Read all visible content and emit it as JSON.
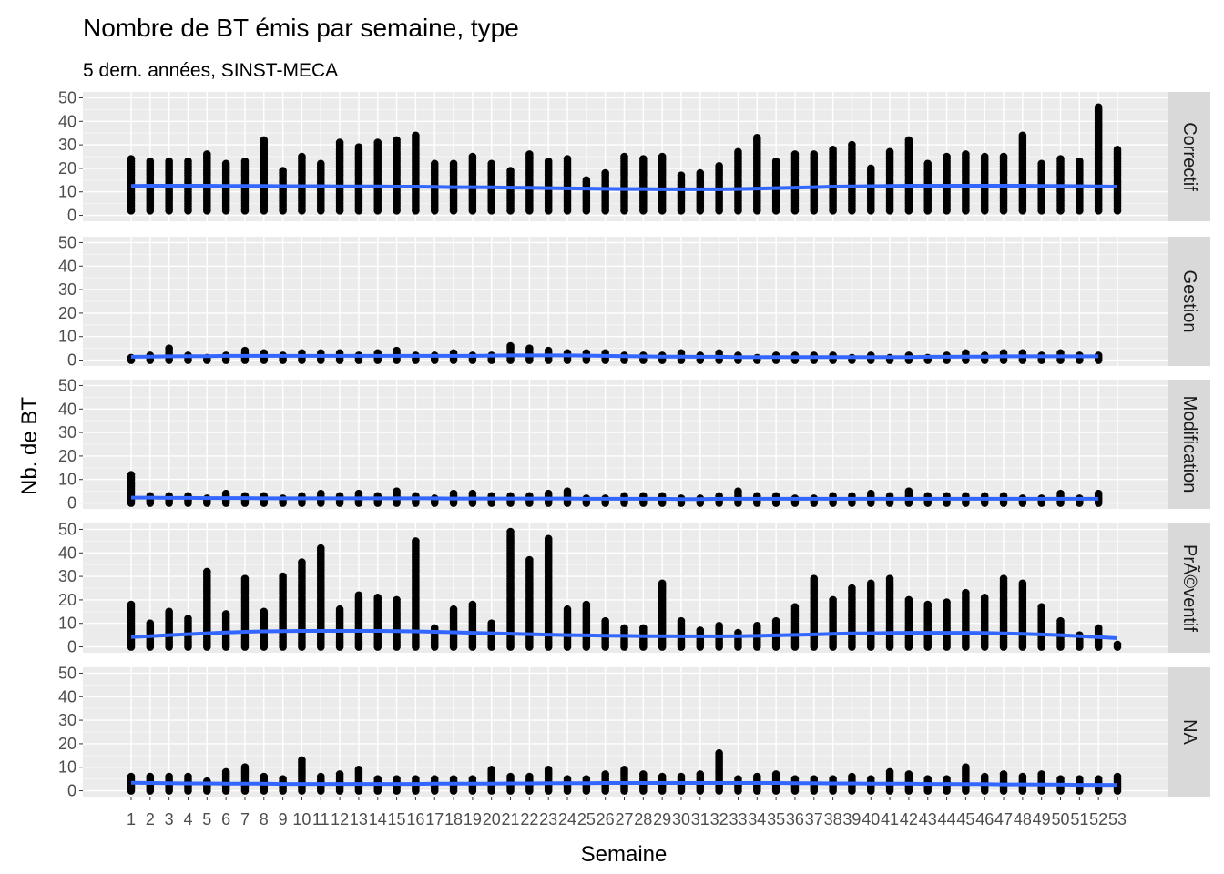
{
  "chart_data": {
    "type": "scatter",
    "title": "Nombre de BT émis par semaine, type",
    "subtitle": "5 dern. années, SINST-MECA",
    "xlabel": "Semaine",
    "ylabel": "Nb. de BT",
    "x_ticks": [
      "1",
      "2",
      "3",
      "4",
      "5",
      "6",
      "7",
      "8",
      "9",
      "10",
      "11",
      "12",
      "13",
      "14",
      "15",
      "16",
      "17",
      "18",
      "19",
      "20",
      "21",
      "22",
      "23",
      "24",
      "25",
      "26",
      "27",
      "28",
      "29",
      "30",
      "31",
      "32",
      "33",
      "34",
      "35",
      "36",
      "37",
      "38",
      "39",
      "40",
      "41",
      "42",
      "43",
      "44",
      "45",
      "46",
      "47",
      "48",
      "49",
      "50",
      "51",
      "52",
      "53"
    ],
    "y_ticks": [
      "0",
      "10",
      "20",
      "30",
      "40",
      "50"
    ],
    "ylim": [
      0,
      50
    ],
    "xlim": [
      1,
      53
    ],
    "grid": true,
    "point_color": "#000000",
    "smooth_color": "#3366FF",
    "panel_bg": "#EBEBEB",
    "strip_bg": "#D9D9D9",
    "facets": [
      {
        "label": "Correctif",
        "maxima": [
          24,
          23,
          23,
          23,
          26,
          22,
          23,
          32,
          19,
          25,
          22,
          31,
          29,
          31,
          32,
          34,
          22,
          22,
          25,
          22,
          19,
          26,
          23,
          24,
          15,
          18,
          25,
          24,
          25,
          17,
          18,
          21,
          27,
          33,
          23,
          26,
          26,
          28,
          30,
          20,
          27,
          32,
          22,
          25,
          26,
          25,
          25,
          34,
          22,
          24,
          23,
          46,
          28
        ],
        "smooth": [
          12.5,
          12.6,
          12.6,
          12.6,
          12.6,
          12.5,
          12.5,
          12.5,
          12.4,
          12.4,
          12.4,
          12.3,
          12.3,
          12.3,
          12.2,
          12.2,
          12.1,
          12.0,
          12.0,
          11.9,
          11.8,
          11.7,
          11.6,
          11.5,
          11.4,
          11.3,
          11.2,
          11.2,
          11.1,
          11.1,
          11.1,
          11.1,
          11.2,
          11.4,
          11.6,
          11.8,
          12.0,
          12.2,
          12.3,
          12.4,
          12.5,
          12.6,
          12.6,
          12.6,
          12.6,
          12.6,
          12.6,
          12.6,
          12.5,
          12.5,
          12.4,
          12.3,
          12.2
        ]
      },
      {
        "label": "Gestion",
        "maxima": [
          1,
          2,
          5,
          2,
          1,
          2,
          4,
          3,
          2,
          3,
          3,
          3,
          2,
          3,
          4,
          2,
          2,
          3,
          2,
          2,
          6,
          5,
          4,
          3,
          3,
          3,
          2,
          2,
          2,
          3,
          2,
          3,
          2,
          1,
          2,
          2,
          2,
          2,
          1,
          2,
          1,
          2,
          1,
          2,
          3,
          2,
          3,
          3,
          2,
          3,
          2,
          2,
          null
        ],
        "smooth": [
          1.4,
          1.5,
          1.6,
          1.7,
          1.7,
          1.8,
          1.8,
          1.8,
          1.8,
          1.8,
          1.8,
          1.8,
          1.8,
          1.8,
          1.8,
          1.8,
          1.8,
          1.8,
          1.8,
          1.9,
          2.0,
          2.0,
          2.0,
          2.0,
          1.9,
          1.8,
          1.7,
          1.6,
          1.5,
          1.5,
          1.4,
          1.4,
          1.3,
          1.3,
          1.3,
          1.3,
          1.3,
          1.3,
          1.3,
          1.3,
          1.3,
          1.3,
          1.4,
          1.4,
          1.5,
          1.5,
          1.6,
          1.6,
          1.6,
          1.6,
          1.6,
          1.6,
          null
        ]
      },
      {
        "label": "Modification",
        "maxima": [
          12,
          3,
          3,
          3,
          2,
          4,
          3,
          3,
          2,
          3,
          4,
          3,
          4,
          3,
          5,
          3,
          2,
          4,
          4,
          3,
          3,
          3,
          4,
          5,
          2,
          2,
          3,
          3,
          3,
          2,
          2,
          3,
          5,
          3,
          3,
          2,
          2,
          3,
          3,
          4,
          3,
          5,
          3,
          3,
          3,
          3,
          3,
          2,
          2,
          4,
          2,
          4,
          null
        ],
        "smooth": [
          2.3,
          2.3,
          2.2,
          2.2,
          2.1,
          2.1,
          2.1,
          2.0,
          2.0,
          2.0,
          2.0,
          2.0,
          2.0,
          2.0,
          2.0,
          2.0,
          2.0,
          1.9,
          1.9,
          1.9,
          1.9,
          1.9,
          1.9,
          1.9,
          1.8,
          1.8,
          1.8,
          1.8,
          1.8,
          1.7,
          1.7,
          1.8,
          1.8,
          1.8,
          1.8,
          1.8,
          1.8,
          1.8,
          1.8,
          1.8,
          1.8,
          1.8,
          1.8,
          1.8,
          1.8,
          1.8,
          1.8,
          1.8,
          1.8,
          1.8,
          1.8,
          1.8,
          null
        ]
      },
      {
        "label": "PrÃ©ventif",
        "maxima": [
          18,
          10,
          15,
          12,
          32,
          14,
          29,
          15,
          30,
          36,
          42,
          16,
          22,
          21,
          20,
          45,
          8,
          16,
          18,
          10,
          49,
          37,
          46,
          16,
          18,
          11,
          8,
          8,
          27,
          11,
          7,
          9,
          6,
          9,
          11,
          17,
          29,
          20,
          25,
          27,
          29,
          20,
          18,
          19,
          23,
          21,
          29,
          27,
          17,
          11,
          5,
          8,
          1
        ],
        "smooth": [
          4.2,
          4.6,
          5.0,
          5.4,
          5.8,
          6.1,
          6.4,
          6.6,
          6.7,
          6.8,
          6.8,
          6.8,
          6.8,
          6.8,
          6.7,
          6.6,
          6.4,
          6.2,
          6.0,
          5.8,
          5.6,
          5.4,
          5.2,
          5.0,
          4.9,
          4.8,
          4.7,
          4.6,
          4.6,
          4.5,
          4.5,
          4.5,
          4.6,
          4.7,
          4.9,
          5.1,
          5.3,
          5.5,
          5.7,
          5.8,
          5.9,
          6.0,
          6.0,
          6.0,
          6.0,
          5.9,
          5.7,
          5.5,
          5.3,
          5.0,
          4.6,
          4.2,
          3.7
        ]
      },
      {
        "label": "NA",
        "maxima": [
          6,
          6,
          6,
          6,
          4,
          8,
          10,
          6,
          5,
          13,
          6,
          7,
          9,
          5,
          5,
          5,
          5,
          5,
          5,
          9,
          6,
          6,
          9,
          5,
          5,
          7,
          9,
          7,
          6,
          6,
          7,
          16,
          5,
          6,
          7,
          5,
          5,
          5,
          6,
          5,
          8,
          7,
          5,
          5,
          10,
          6,
          7,
          6,
          7,
          5,
          5,
          5,
          6
        ],
        "smooth": [
          3.4,
          3.3,
          3.2,
          3.1,
          3.1,
          3.0,
          3.0,
          3.0,
          2.9,
          2.9,
          2.9,
          2.9,
          2.9,
          2.9,
          2.9,
          2.9,
          3.0,
          3.0,
          3.0,
          3.0,
          3.1,
          3.1,
          3.2,
          3.2,
          3.2,
          3.3,
          3.3,
          3.3,
          3.3,
          3.3,
          3.3,
          3.3,
          3.3,
          3.3,
          3.3,
          3.2,
          3.2,
          3.1,
          3.1,
          3.0,
          3.0,
          3.0,
          2.9,
          2.9,
          2.8,
          2.8,
          2.7,
          2.7,
          2.6,
          2.6,
          2.5,
          2.5,
          2.5
        ]
      }
    ]
  }
}
